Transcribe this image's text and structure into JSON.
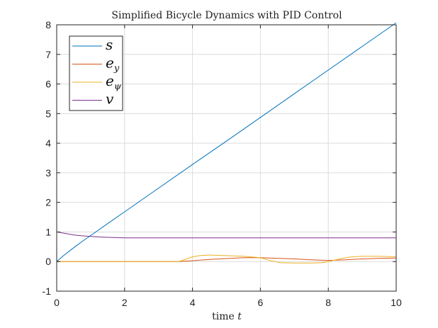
{
  "chart_data": {
    "type": "line",
    "title": "Simplified Bicycle Dynamics with PID Control",
    "xlabel": "time t",
    "xlabel_text": "time ",
    "xlabel_var": "t",
    "ylabel": "",
    "xlim": [
      0,
      10
    ],
    "ylim": [
      -1,
      8
    ],
    "xticks": [
      0,
      2,
      4,
      6,
      8,
      10
    ],
    "yticks": [
      -1,
      0,
      1,
      2,
      3,
      4,
      5,
      6,
      7,
      8
    ],
    "grid": true,
    "legend_position": "top-left",
    "series": [
      {
        "name": "s",
        "label_base": "s",
        "label_sub": "",
        "color": "#0072BD",
        "x": [
          0,
          0.2,
          0.4,
          0.6,
          0.8,
          1,
          1.5,
          2,
          3,
          4,
          5,
          6,
          7,
          8,
          9,
          10
        ],
        "y": [
          0,
          0.2,
          0.38,
          0.55,
          0.72,
          0.88,
          1.28,
          1.68,
          2.48,
          3.28,
          4.07,
          4.87,
          5.67,
          6.47,
          7.27,
          8.07
        ]
      },
      {
        "name": "e_y",
        "label_base": "e",
        "label_sub": "y",
        "color": "#D95319",
        "x": [
          0,
          3.6,
          4,
          4.5,
          5,
          5.5,
          6,
          6.5,
          7,
          7.5,
          8,
          8.5,
          9,
          9.5,
          10
        ],
        "y": [
          0,
          0,
          0.03,
          0.07,
          0.1,
          0.13,
          0.13,
          0.11,
          0.09,
          0.06,
          0.04,
          0.06,
          0.09,
          0.11,
          0.12
        ]
      },
      {
        "name": "e_psi",
        "label_base": "e",
        "label_sub": "ψ",
        "color": "#EDB120",
        "x": [
          0,
          3.6,
          3.8,
          4,
          4.2,
          4.5,
          5,
          5.5,
          6,
          6.3,
          6.6,
          7,
          7.5,
          7.8,
          8,
          8.3,
          8.6,
          9,
          9.5,
          10
        ],
        "y": [
          0,
          0,
          0.08,
          0.16,
          0.2,
          0.22,
          0.2,
          0.18,
          0.13,
          0.03,
          -0.04,
          -0.05,
          -0.05,
          -0.04,
          0,
          0.08,
          0.15,
          0.18,
          0.18,
          0.16
        ]
      },
      {
        "name": "v",
        "label_base": "v",
        "label_sub": "",
        "color": "#7E2F8E",
        "x": [
          0,
          0.25,
          0.5,
          0.75,
          1,
          1.25,
          1.5,
          1.75,
          2,
          3,
          4,
          5,
          6,
          7,
          8,
          9,
          10
        ],
        "y": [
          1,
          0.95,
          0.9,
          0.87,
          0.85,
          0.83,
          0.82,
          0.81,
          0.8,
          0.8,
          0.8,
          0.8,
          0.8,
          0.8,
          0.8,
          0.8,
          0.8
        ]
      }
    ]
  }
}
